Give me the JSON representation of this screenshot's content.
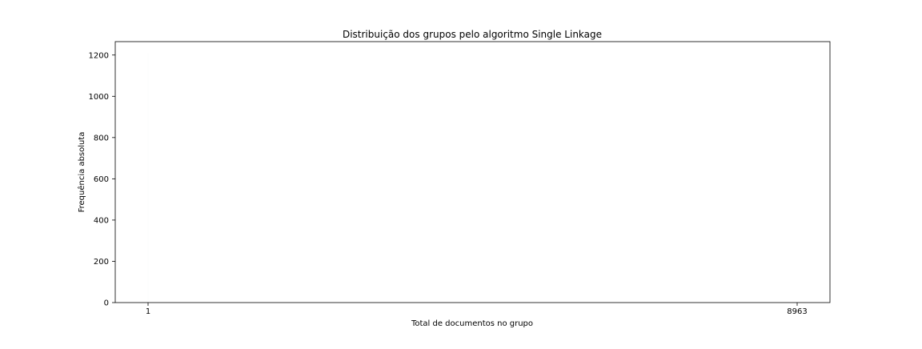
{
  "chart_data": {
    "type": "bar",
    "title": "Distribuição dos grupos pelo algoritmo Single Linkage",
    "xlabel": "Total de documentos no grupo",
    "ylabel": "Frequência absoluta",
    "categories": [
      "1",
      "8963"
    ],
    "values": [
      1209,
      1
    ],
    "ylim": [
      0,
      1265
    ],
    "yticks": [
      0,
      200,
      400,
      600,
      800,
      1000,
      1200
    ],
    "grid": false,
    "legend": "none"
  }
}
